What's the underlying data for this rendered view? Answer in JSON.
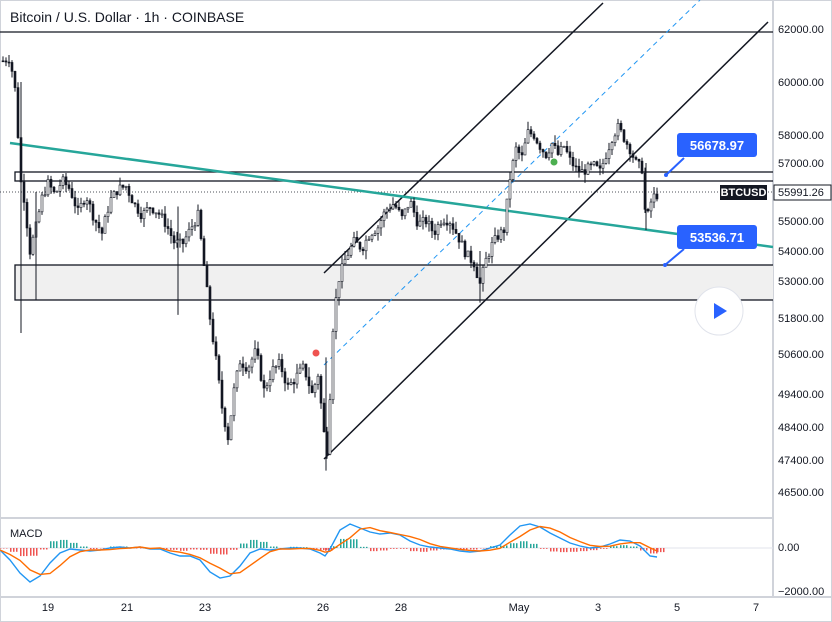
{
  "header": {
    "title": "Bitcoin / U.S. Dollar · 1h · COINBASE"
  },
  "price_axis": {
    "ticks": [
      "62000.00",
      "60000.00",
      "58000.00",
      "57000.00",
      "55000.00",
      "54000.00",
      "53000.00",
      "51800.00",
      "50600.00",
      "49400.00",
      "48400.00",
      "47400.00",
      "46500.00"
    ],
    "tick_values": [
      62000,
      60000,
      58000,
      57000,
      55000,
      54000,
      53000,
      51800,
      50600,
      49400,
      48400,
      47400,
      46500
    ]
  },
  "current_price": {
    "ticker": "BTCUSD",
    "value": "55991.26"
  },
  "callouts": [
    {
      "label": "56678.97",
      "value": 56678.97
    },
    {
      "label": "53536.71",
      "value": 53536.71
    }
  ],
  "time_axis": {
    "labels": [
      "19",
      "21",
      "23",
      "26",
      "28",
      "May",
      "3",
      "5",
      "7"
    ]
  },
  "macd": {
    "label": "MACD",
    "ticks": [
      "0.00",
      "−2000.00"
    ]
  },
  "replay_button": {
    "icon": "play-icon"
  },
  "colors": {
    "candle": "#131722",
    "trendline": "#26a69a",
    "channel": "#131722",
    "dashed": "#2196f3",
    "callout": "#2962ff",
    "zone_fill": "#f0f0f0",
    "macd_line": "#2196f3",
    "signal_line": "#ff6d00",
    "hist_pos": "#26a69a",
    "hist_neg": "#ef5350",
    "dot_red": "#ef5350",
    "dot_green": "#4caf50"
  },
  "chart_data": {
    "type": "candlestick",
    "symbol": "BTCUSD",
    "exchange": "COINBASE",
    "interval": "1h",
    "ylim": [
      46500,
      62500
    ],
    "x_labels": [
      "19",
      "21",
      "23",
      "26",
      "28",
      "May",
      "3",
      "5",
      "7"
    ],
    "approx_price_path": [
      {
        "x": "18",
        "y": 60500
      },
      {
        "x": "19",
        "y": 55800
      },
      {
        "x": "20",
        "y": 56200
      },
      {
        "x": "21",
        "y": 56000
      },
      {
        "x": "22",
        "y": 54500
      },
      {
        "x": "23",
        "y": 49500
      },
      {
        "x": "24",
        "y": 50500
      },
      {
        "x": "25",
        "y": 49800
      },
      {
        "x": "26",
        "y": 47400
      },
      {
        "x": "27",
        "y": 54500
      },
      {
        "x": "28",
        "y": 55500
      },
      {
        "x": "29",
        "y": 54500
      },
      {
        "x": "30",
        "y": 53000
      },
      {
        "x": "May",
        "y": 57700
      },
      {
        "x": "2",
        "y": 56800
      },
      {
        "x": "3",
        "y": 57000
      },
      {
        "x": "4",
        "y": 58200
      },
      {
        "x": "4.5",
        "y": 55991.26
      }
    ],
    "horizontal_levels": [
      62000,
      56678.97,
      56100,
      53536.71,
      52400
    ],
    "annotations": [
      "56678.97",
      "53536.71"
    ],
    "grid": false,
    "indicator": "MACD",
    "macd_range": [
      -2000,
      1000
    ]
  }
}
